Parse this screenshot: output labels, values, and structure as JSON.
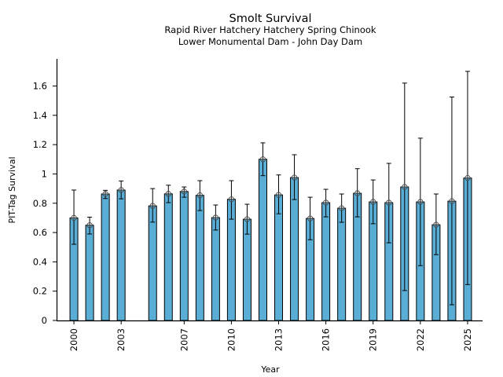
{
  "chart_data": {
    "type": "bar",
    "title": "Smolt Survival",
    "subtitle_lines": [
      "Rapid River Hatchery Hatchery Spring Chinook",
      "Lower Monumental Dam - John Day Dam"
    ],
    "xlabel": "Year",
    "ylabel": "PIT-Tag Survival",
    "ylim": [
      0,
      1.785
    ],
    "xlim": [
      1998.9,
      2025.95
    ],
    "yticks": [
      0,
      0.2,
      0.4,
      0.6,
      0.8,
      1,
      1.2,
      1.4,
      1.6
    ],
    "ytick_labels": [
      "0",
      "0.2",
      "0.4",
      "0.6",
      "0.8",
      "1",
      "1.2",
      "1.4",
      "1.6"
    ],
    "xticks": [
      2000,
      2003,
      2007,
      2010,
      2013,
      2016,
      2019,
      2022,
      2025
    ],
    "xtick_labels": [
      "2000",
      "2003",
      "2007",
      "2010",
      "2013",
      "2016",
      "2019",
      "2022",
      "2025"
    ],
    "grid": false,
    "bar_color": "#5aaed6",
    "edge_color": "#000000",
    "marker_color": "#444444",
    "series": [
      {
        "name": "PIT-Tag Survival",
        "points": [
          {
            "year": 2000,
            "value": 0.7,
            "lower": 0.52,
            "upper": 0.89
          },
          {
            "year": 2001,
            "value": 0.65,
            "lower": 0.59,
            "upper": 0.705
          },
          {
            "year": 2002,
            "value": 0.863,
            "lower": 0.832,
            "upper": 0.888
          },
          {
            "year": 2003,
            "value": 0.89,
            "lower": 0.83,
            "upper": 0.952
          },
          {
            "year": 2005,
            "value": 0.782,
            "lower": 0.671,
            "upper": 0.9
          },
          {
            "year": 2006,
            "value": 0.864,
            "lower": 0.804,
            "upper": 0.923
          },
          {
            "year": 2007,
            "value": 0.88,
            "lower": 0.841,
            "upper": 0.911
          },
          {
            "year": 2008,
            "value": 0.854,
            "lower": 0.75,
            "upper": 0.954
          },
          {
            "year": 2009,
            "value": 0.702,
            "lower": 0.617,
            "upper": 0.788
          },
          {
            "year": 2010,
            "value": 0.827,
            "lower": 0.691,
            "upper": 0.954
          },
          {
            "year": 2011,
            "value": 0.691,
            "lower": 0.589,
            "upper": 0.793
          },
          {
            "year": 2012,
            "value": 1.1,
            "lower": 0.988,
            "upper": 1.212
          },
          {
            "year": 2013,
            "value": 0.857,
            "lower": 0.728,
            "upper": 0.993
          },
          {
            "year": 2014,
            "value": 0.975,
            "lower": 0.825,
            "upper": 1.131
          },
          {
            "year": 2015,
            "value": 0.696,
            "lower": 0.551,
            "upper": 0.841
          },
          {
            "year": 2016,
            "value": 0.804,
            "lower": 0.707,
            "upper": 0.895
          },
          {
            "year": 2017,
            "value": 0.766,
            "lower": 0.67,
            "upper": 0.863
          },
          {
            "year": 2018,
            "value": 0.868,
            "lower": 0.707,
            "upper": 1.036
          },
          {
            "year": 2019,
            "value": 0.809,
            "lower": 0.66,
            "upper": 0.959
          },
          {
            "year": 2020,
            "value": 0.804,
            "lower": 0.53,
            "upper": 1.072
          },
          {
            "year": 2021,
            "value": 0.911,
            "lower": 0.204,
            "upper": 1.62
          },
          {
            "year": 2022,
            "value": 0.809,
            "lower": 0.374,
            "upper": 1.244
          },
          {
            "year": 2023,
            "value": 0.653,
            "lower": 0.449,
            "upper": 0.863
          },
          {
            "year": 2024,
            "value": 0.814,
            "lower": 0.107,
            "upper": 1.525
          },
          {
            "year": 2025,
            "value": 0.972,
            "lower": 0.245,
            "upper": 1.7
          }
        ]
      }
    ]
  }
}
